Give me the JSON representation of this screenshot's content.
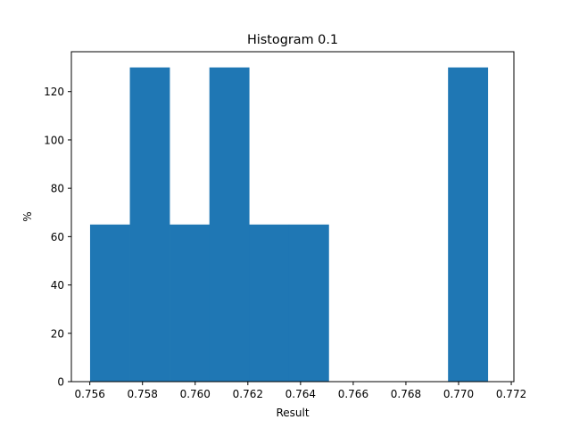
{
  "chart_data": {
    "type": "bar",
    "title": "Histogram 0.1",
    "xlabel": "Result",
    "ylabel": "%",
    "xlim": [
      0.7553,
      0.7721
    ],
    "ylim": [
      0,
      136.5
    ],
    "bins": [
      {
        "x0": 0.75601,
        "x1": 0.75752,
        "value": 65
      },
      {
        "x0": 0.75752,
        "x1": 0.75903,
        "value": 130
      },
      {
        "x0": 0.75903,
        "x1": 0.76054,
        "value": 65
      },
      {
        "x0": 0.76054,
        "x1": 0.76205,
        "value": 130
      },
      {
        "x0": 0.76205,
        "x1": 0.76356,
        "value": 65
      },
      {
        "x0": 0.76356,
        "x1": 0.76507,
        "value": 65
      },
      {
        "x0": 0.76507,
        "x1": 0.76658,
        "value": 0
      },
      {
        "x0": 0.76658,
        "x1": 0.76809,
        "value": 0
      },
      {
        "x0": 0.76809,
        "x1": 0.7696,
        "value": 0
      },
      {
        "x0": 0.7696,
        "x1": 0.77111,
        "value": 130
      }
    ],
    "xticks": [
      0.756,
      0.758,
      0.76,
      0.762,
      0.764,
      0.766,
      0.768,
      0.77,
      0.772
    ],
    "xtick_labels": [
      "0.756",
      "0.758",
      "0.760",
      "0.762",
      "0.764",
      "0.766",
      "0.768",
      "0.770",
      "0.772"
    ],
    "yticks": [
      0,
      20,
      40,
      60,
      80,
      100,
      120
    ],
    "ytick_labels": [
      "0",
      "20",
      "40",
      "60",
      "80",
      "100",
      "120"
    ],
    "bar_color": "#1f77b4",
    "grid": false,
    "legend": "none"
  }
}
